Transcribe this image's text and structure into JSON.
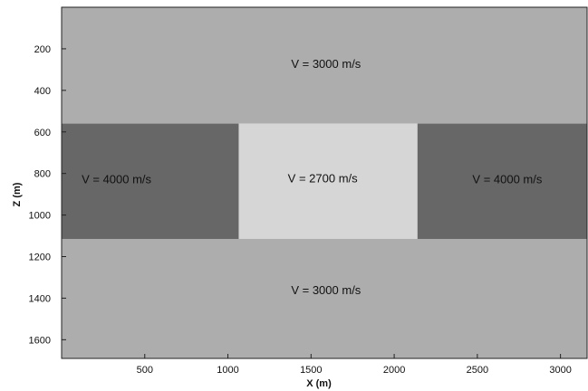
{
  "chart_data": {
    "type": "velocity-model",
    "xlabel": "X (m)",
    "ylabel": "Z (m)",
    "xlim": [
      0,
      3160
    ],
    "ylim": [
      0,
      1690
    ],
    "y_inverted": true,
    "xticks": [
      500,
      1000,
      1500,
      2000,
      2500,
      3000
    ],
    "yticks": [
      200,
      400,
      600,
      800,
      1000,
      1200,
      1400,
      1600
    ],
    "regions": [
      {
        "x0": 0,
        "x1": 3160,
        "z0": 0,
        "z1": 560,
        "velocity": 3000,
        "color": "#adadad",
        "label": "V = 3000 m/s",
        "label_x": 1590,
        "label_z": 270
      },
      {
        "x0": 0,
        "x1": 1065,
        "z0": 560,
        "z1": 1115,
        "velocity": 4000,
        "color": "#676767",
        "label": "V = 4000 m/s",
        "label_x": 330,
        "label_z": 825
      },
      {
        "x0": 1065,
        "x1": 2140,
        "z0": 560,
        "z1": 1115,
        "velocity": 2700,
        "color": "#d6d6d6",
        "label": "V = 2700 m/s",
        "label_x": 1570,
        "label_z": 820
      },
      {
        "x0": 2140,
        "x1": 3160,
        "z0": 560,
        "z1": 1115,
        "velocity": 4000,
        "color": "#676767",
        "label": "V = 4000 m/s",
        "label_x": 2680,
        "label_z": 825
      },
      {
        "x0": 0,
        "x1": 3160,
        "z0": 1115,
        "z1": 1690,
        "velocity": 3000,
        "color": "#adadad",
        "label": "V = 3000 m/s",
        "label_x": 1590,
        "label_z": 1360
      }
    ]
  }
}
